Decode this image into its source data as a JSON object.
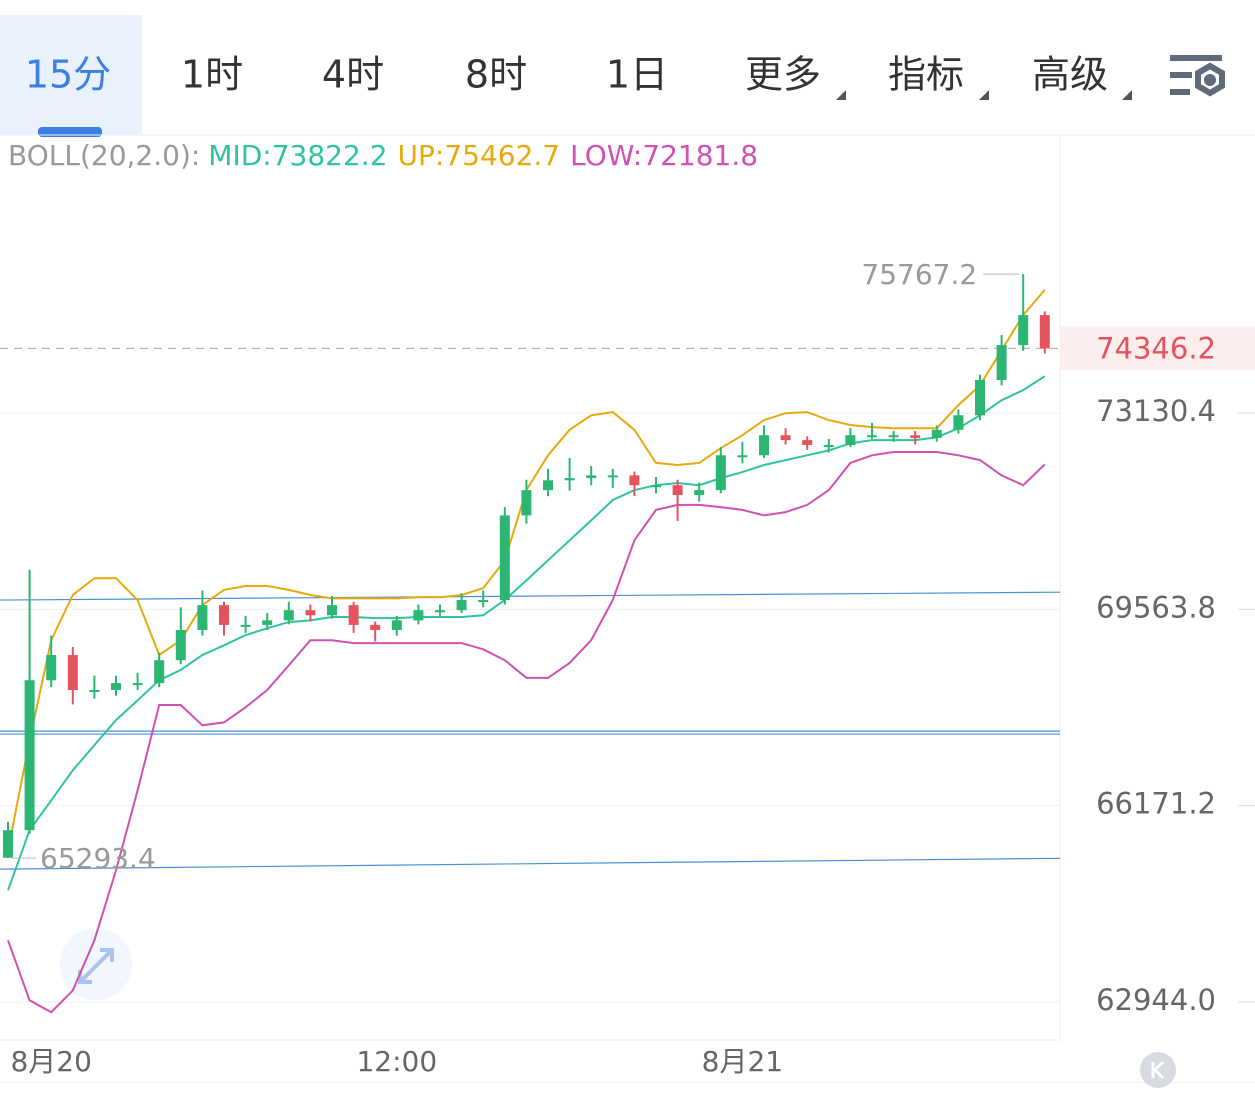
{
  "tabs": [
    "15分",
    "1时",
    "4时",
    "8时",
    "1日",
    "更多",
    "指标",
    "高级"
  ],
  "active_tab": 0,
  "chart_data": {
    "type": "candlestick",
    "indicator": "BOLL(20,2.0):",
    "categories": [
      null,
      null,
      "8月20",
      null,
      null,
      null,
      null,
      null,
      null,
      null,
      null,
      null,
      null,
      null,
      null,
      null,
      null,
      null,
      "12:00",
      null,
      null,
      null,
      null,
      null,
      null,
      null,
      null,
      null,
      null,
      null,
      null,
      null,
      null,
      null,
      "8月21",
      null,
      null,
      null,
      null,
      null,
      null,
      null,
      null,
      null,
      null,
      null,
      null,
      null,
      null
    ],
    "open": [
      65300,
      65760,
      68320,
      68760,
      68150,
      68150,
      68270,
      68270,
      68670,
      69200,
      69640,
      69290,
      69290,
      69370,
      69550,
      69460,
      69640,
      69290,
      69200,
      69370,
      69550,
      69550,
      69730,
      69730,
      71250,
      71710,
      71890,
      71930,
      71980,
      71980,
      71800,
      71800,
      71620,
      71710,
      72350,
      72350,
      72720,
      72630,
      72540,
      72540,
      72720,
      72720,
      72720,
      72670,
      72820,
      73090,
      73750,
      74410,
      74980
    ],
    "high": [
      65900,
      70270,
      69100,
      68900,
      68400,
      68400,
      68450,
      68800,
      69600,
      69900,
      69700,
      69450,
      69500,
      69700,
      69650,
      69800,
      69700,
      69350,
      69450,
      69650,
      69650,
      69850,
      69900,
      71400,
      71900,
      72100,
      72300,
      72150,
      72100,
      72050,
      71950,
      71900,
      71850,
      72500,
      72600,
      72900,
      72850,
      72700,
      72650,
      72850,
      72950,
      72800,
      72800,
      72900,
      73200,
      73850,
      74600,
      75767.2,
      75050
    ],
    "low": [
      65293.4,
      65700,
      68200,
      67900,
      68000,
      68050,
      68150,
      68200,
      68600,
      69100,
      69100,
      69150,
      69200,
      69300,
      69350,
      69400,
      69150,
      69000,
      69100,
      69300,
      69450,
      69500,
      69600,
      69650,
      71100,
      71600,
      71700,
      71800,
      71750,
      71600,
      71650,
      71150,
      71500,
      71650,
      72200,
      72300,
      72550,
      72450,
      72400,
      72500,
      72650,
      72600,
      72550,
      72600,
      72750,
      73000,
      73650,
      74300,
      74250
    ],
    "close": [
      65760,
      68320,
      68760,
      68150,
      68150,
      68270,
      68270,
      68670,
      69200,
      69640,
      69290,
      69290,
      69370,
      69550,
      69460,
      69640,
      69290,
      69200,
      69370,
      69550,
      69550,
      69730,
      69730,
      71250,
      71710,
      71890,
      71930,
      71980,
      71980,
      71800,
      71800,
      71620,
      71710,
      72350,
      72350,
      72720,
      72630,
      72540,
      72540,
      72720,
      72720,
      72720,
      72670,
      72820,
      73090,
      73750,
      74410,
      74980,
      74346.2
    ],
    "up_color": "#2bb673",
    "down_color": "#e5535f",
    "series": [
      {
        "name": "MID:",
        "color": "#2ec4a0",
        "values": [
          64760,
          65760,
          66260,
          66770,
          67200,
          67630,
          67970,
          68320,
          68500,
          68760,
          68930,
          69110,
          69230,
          69340,
          69370,
          69430,
          69430,
          69410,
          69410,
          69430,
          69430,
          69430,
          69460,
          69730,
          70080,
          70440,
          70800,
          71160,
          71530,
          71710,
          71800,
          71840,
          71800,
          71930,
          72040,
          72170,
          72260,
          72350,
          72440,
          72570,
          72630,
          72630,
          72630,
          72680,
          72850,
          73090,
          73370,
          73560,
          73822.2
        ]
      },
      {
        "name": "UP:",
        "color": "#e9a90c",
        "values": [
          65420,
          67280,
          69020,
          69820,
          70120,
          70120,
          69730,
          68760,
          69020,
          69640,
          69910,
          69980,
          69980,
          69910,
          69820,
          69760,
          69760,
          69760,
          69760,
          69780,
          69780,
          69820,
          69940,
          70440,
          71710,
          72350,
          72820,
          73090,
          73150,
          72820,
          72210,
          72170,
          72210,
          72480,
          72720,
          73000,
          73130,
          73150,
          73000,
          72910,
          72870,
          72850,
          72850,
          72850,
          73280,
          73650,
          74310,
          74980,
          75462.7
        ]
      },
      {
        "name": "LOW:",
        "color": "#d24fb4",
        "values": [
          63940,
          62970,
          62780,
          63130,
          63940,
          65090,
          66430,
          67890,
          67890,
          67540,
          67590,
          67850,
          68150,
          68580,
          69020,
          69020,
          68970,
          68970,
          68970,
          68970,
          68970,
          68970,
          68860,
          68670,
          68360,
          68360,
          68620,
          69020,
          69730,
          70800,
          71350,
          71440,
          71440,
          71400,
          71350,
          71250,
          71310,
          71440,
          71710,
          72210,
          72350,
          72410,
          72410,
          72410,
          72350,
          72260,
          71980,
          71800,
          72181.8
        ]
      }
    ],
    "trend_lines": [
      [
        69730,
        69870
      ],
      [
        67440,
        67440
      ],
      [
        67390,
        67390
      ],
      [
        65110,
        65290
      ]
    ],
    "trend_color": "#4a90d9",
    "ylim": [
      62337,
      78500
    ],
    "log_scale": true,
    "yticks": [
      {
        "value": 62944,
        "label": "62944.0"
      },
      66171.2,
      69563.8,
      73130.4
    ],
    "grid": true
  }
}
